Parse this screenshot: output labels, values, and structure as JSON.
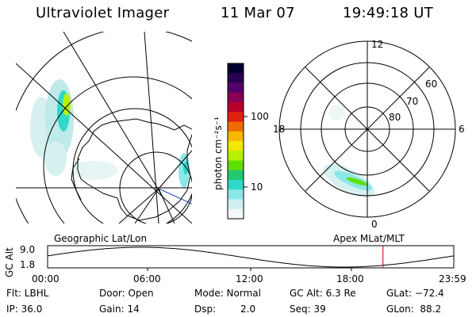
{
  "header": {
    "title": "Ultraviolet Imager",
    "date": "11 Mar 07",
    "time": "19:49:18 UT"
  },
  "colorbar": {
    "label": "photon cm⁻²s⁻¹",
    "ticks": [
      "100",
      "10"
    ],
    "colors": [
      "#000030",
      "#2a0050",
      "#55006a",
      "#8a0052",
      "#b8002a",
      "#e02010",
      "#f06a00",
      "#f8b800",
      "#f0e800",
      "#b8f000",
      "#60e000",
      "#20c870",
      "#30d8c8",
      "#8ce8e8",
      "#d0f0f0",
      "#f4f8f8"
    ]
  },
  "geo_panel": {
    "caption": "Geographic Lat/Lon"
  },
  "polar_panel": {
    "caption": "Apex  MLat/MLT",
    "mlt_labels": [
      "12",
      "18",
      "6",
      "0"
    ],
    "lat_labels": [
      "60",
      "70",
      "80"
    ]
  },
  "timeline": {
    "ylabel": "GC Alt",
    "yticks": [
      "9.0",
      "1.8"
    ],
    "xticks": [
      "00:00",
      "06:00",
      "12:00",
      "18:00",
      "23:59"
    ],
    "current_time_hours": 19.82
  },
  "footer": {
    "row1": {
      "filter": "Flt: LBHL",
      "door": "Door: Open",
      "mode": "Mode: Normal",
      "gcalt": "GC Alt: 6.3 Re",
      "glat": "GLat: −72.4"
    },
    "row2": {
      "ip": "IP: 36.0",
      "gain": "Gain: 14",
      "dsp_label": "Dsp:",
      "dsp_value": "2.0",
      "seq": "Seq: 39",
      "glon": "GLon:  88.2"
    }
  }
}
